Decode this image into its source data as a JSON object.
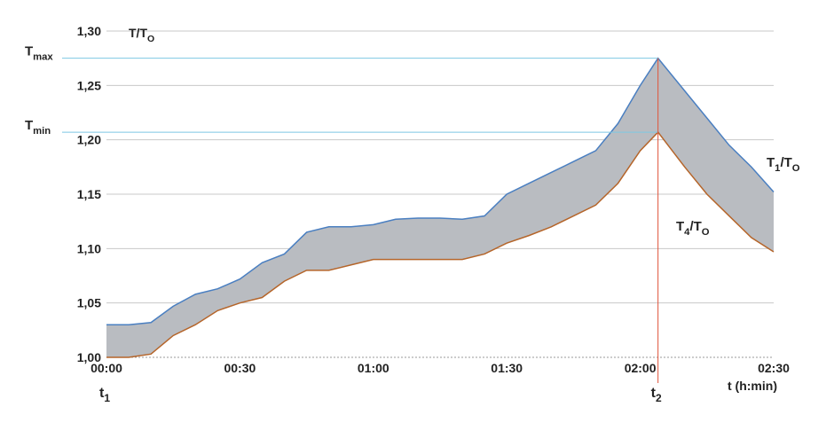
{
  "chart_data": {
    "type": "band",
    "y_label": [
      "T/T",
      "O"
    ],
    "x_label": "t (h:min)",
    "x": [
      0,
      5,
      10,
      15,
      20,
      25,
      30,
      35,
      40,
      45,
      50,
      55,
      60,
      65,
      70,
      75,
      80,
      85,
      90,
      95,
      100,
      105,
      110,
      115,
      120,
      124,
      130,
      135,
      140,
      145,
      150
    ],
    "series": [
      {
        "label": [
          "T",
          "1",
          "/T",
          "O"
        ],
        "color": "#4a7fc1",
        "values": [
          1.03,
          1.03,
          1.032,
          1.047,
          1.058,
          1.063,
          1.072,
          1.087,
          1.095,
          1.115,
          1.12,
          1.12,
          1.122,
          1.127,
          1.128,
          1.128,
          1.127,
          1.13,
          1.15,
          1.16,
          1.17,
          1.18,
          1.19,
          1.215,
          1.25,
          1.275,
          1.245,
          1.22,
          1.195,
          1.175,
          1.152
        ]
      },
      {
        "label": [
          "T",
          "4",
          "/T",
          "O"
        ],
        "color": "#b5652a",
        "values": [
          1.0,
          1.0,
          1.003,
          1.02,
          1.03,
          1.043,
          1.05,
          1.055,
          1.07,
          1.08,
          1.08,
          1.085,
          1.09,
          1.09,
          1.09,
          1.09,
          1.09,
          1.095,
          1.105,
          1.112,
          1.12,
          1.13,
          1.14,
          1.16,
          1.19,
          1.207,
          1.175,
          1.15,
          1.13,
          1.11,
          1.097
        ]
      }
    ],
    "band_color": "#b9bcc1",
    "xlim": [
      0,
      150
    ],
    "xticks": [
      {
        "value": 0,
        "label": "00:00"
      },
      {
        "value": 30,
        "label": "00:30"
      },
      {
        "value": 60,
        "label": "01:00"
      },
      {
        "value": 90,
        "label": "01:30"
      },
      {
        "value": 120,
        "label": "02:00"
      },
      {
        "value": 150,
        "label": "02:30"
      }
    ],
    "ylim": [
      1.0,
      1.3
    ],
    "yticks": [
      {
        "value": 1.0,
        "label": "1,00"
      },
      {
        "value": 1.05,
        "label": "1,05"
      },
      {
        "value": 1.1,
        "label": "1,10"
      },
      {
        "value": 1.15,
        "label": "1,15"
      },
      {
        "value": 1.2,
        "label": "1,20"
      },
      {
        "value": 1.25,
        "label": "1,25"
      },
      {
        "value": 1.3,
        "label": "1,30"
      }
    ],
    "grid": true,
    "hlines": [
      {
        "value": 1.275,
        "label": [
          "T",
          "max"
        ],
        "color": "#7ec8e3"
      },
      {
        "value": 1.207,
        "label": [
          "T",
          "min"
        ],
        "color": "#7ec8e3"
      }
    ],
    "vmarks": [
      {
        "value": 0,
        "label": [
          "t",
          "1"
        ]
      },
      {
        "value": 124,
        "label": [
          "t",
          "2"
        ],
        "color": "#e0533a"
      }
    ]
  }
}
